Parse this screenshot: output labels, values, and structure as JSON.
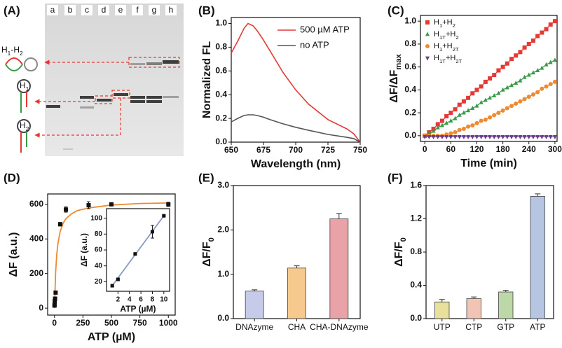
{
  "gel": {
    "label": "(A)",
    "lanes": [
      "a",
      "b",
      "c",
      "d",
      "e",
      "f",
      "g",
      "h"
    ],
    "species": [
      "H1-H2",
      "H1",
      "H2"
    ]
  },
  "chart_data": [
    {
      "type": "line",
      "label": "(B)",
      "xlabel": "Wavelength (nm)",
      "ylabel": "Normalized FL",
      "legend": "upper right",
      "x": [
        650,
        655,
        660,
        663,
        667,
        670,
        675,
        680,
        690,
        700,
        710,
        725,
        740,
        745,
        750
      ],
      "series": [
        {
          "name": "500 µM ATP",
          "color": "#e53935",
          "values": [
            0.75,
            0.85,
            0.96,
            1.0,
            0.98,
            0.94,
            0.86,
            0.77,
            0.59,
            0.44,
            0.32,
            0.19,
            0.11,
            0.07,
            0.0
          ]
        },
        {
          "name": "no ATP",
          "color": "#555555",
          "values": [
            0.17,
            0.2,
            0.225,
            0.23,
            0.23,
            0.225,
            0.21,
            0.19,
            0.155,
            0.125,
            0.1,
            0.065,
            0.04,
            0.03,
            0.0
          ]
        }
      ],
      "xlim": [
        650,
        750
      ],
      "xticks": [
        650,
        675,
        700,
        725,
        750
      ],
      "ylim": [
        0,
        1.05
      ],
      "yticks": [
        {
          "value": 0,
          "label": "0.0"
        },
        0.2,
        0.4,
        0.6,
        0.8,
        {
          "value": 1,
          "label": "1.0"
        }
      ]
    },
    {
      "type": "scatter",
      "label": "(C)",
      "xlabel": "Time (min)",
      "ylabel": "ΔF/ΔFmax",
      "legend": "upper left",
      "x": [
        0,
        10,
        20,
        30,
        40,
        50,
        60,
        70,
        80,
        90,
        100,
        110,
        120,
        130,
        140,
        150,
        160,
        170,
        180,
        190,
        200,
        210,
        220,
        230,
        240,
        250,
        260,
        270,
        280,
        290,
        300
      ],
      "series": [
        {
          "name": "H1+H2",
          "color": "#e53935",
          "marker": "s",
          "values": [
            0,
            0.03,
            0.06,
            0.1,
            0.13,
            0.17,
            0.2,
            0.23,
            0.27,
            0.3,
            0.33,
            0.37,
            0.4,
            0.43,
            0.47,
            0.5,
            0.53,
            0.57,
            0.6,
            0.63,
            0.67,
            0.7,
            0.73,
            0.77,
            0.8,
            0.83,
            0.87,
            0.9,
            0.93,
            0.97,
            1.0
          ]
        },
        {
          "name": "H1T+H2",
          "color": "#3a9a4a",
          "marker": "^",
          "values": [
            0,
            0.02,
            0.04,
            0.07,
            0.09,
            0.11,
            0.13,
            0.15,
            0.18,
            0.2,
            0.22,
            0.24,
            0.26,
            0.29,
            0.31,
            0.33,
            0.35,
            0.37,
            0.4,
            0.42,
            0.44,
            0.46,
            0.48,
            0.51,
            0.53,
            0.55,
            0.57,
            0.59,
            0.62,
            0.64,
            0.66
          ]
        },
        {
          "name": "H1+H2T",
          "color": "#f08a30",
          "marker": "o",
          "values": [
            0,
            0,
            0,
            0,
            0,
            0.01,
            0.02,
            0.03,
            0.05,
            0.06,
            0.08,
            0.09,
            0.11,
            0.13,
            0.14,
            0.16,
            0.18,
            0.2,
            0.22,
            0.24,
            0.26,
            0.28,
            0.3,
            0.32,
            0.34,
            0.36,
            0.38,
            0.41,
            0.43,
            0.45,
            0.47
          ]
        },
        {
          "name": "H1T+H2T",
          "color": "#6a3d8f",
          "marker": "v",
          "values": [
            -0.01,
            -0.01,
            -0.01,
            -0.01,
            -0.01,
            -0.01,
            -0.01,
            -0.01,
            -0.01,
            -0.01,
            -0.01,
            -0.01,
            -0.01,
            -0.01,
            -0.01,
            -0.01,
            -0.01,
            -0.01,
            -0.01,
            -0.01,
            -0.01,
            -0.01,
            -0.01,
            -0.01,
            -0.01,
            -0.01,
            -0.01,
            -0.01,
            -0.01,
            -0.01,
            -0.01
          ]
        }
      ],
      "xlim": [
        -10,
        305
      ],
      "xticks": [
        0,
        60,
        120,
        180,
        240,
        300
      ],
      "ylim": [
        -0.05,
        1.05
      ],
      "yticks": [
        {
          "value": 0,
          "label": "0.0"
        },
        0.2,
        0.4,
        0.6,
        0.8,
        {
          "value": 1,
          "label": "1.0"
        }
      ]
    },
    {
      "type": "scatter",
      "label": "(D)",
      "xlabel": "ATP (µM)",
      "ylabel": "ΔF (a.u.)",
      "x": [
        0,
        1,
        2,
        5,
        10,
        50,
        100,
        300,
        500,
        1000
      ],
      "series": [
        {
          "color": "#111111",
          "marker": "s",
          "values": [
            15,
            20,
            40,
            55,
            90,
            485,
            570,
            595,
            600,
            600
          ],
          "errors": [
            3,
            3,
            3,
            3,
            5,
            10,
            15,
            20,
            8,
            12
          ]
        }
      ],
      "fit": {
        "color": "#f08a30",
        "x": [
          0,
          10,
          20,
          30,
          50,
          75,
          100,
          150,
          200,
          300,
          500,
          750,
          1000
        ],
        "y": [
          0,
          207,
          310,
          372,
          443,
          490,
          517,
          545,
          564,
          579,
          596,
          605,
          608
        ]
      },
      "xlim": [
        -60,
        1060
      ],
      "xticks": [
        0,
        250,
        500,
        750,
        1000
      ],
      "ylim": [
        -40,
        660
      ],
      "yticks": [
        0,
        200,
        400,
        600
      ]
    },
    {
      "type": "scatter",
      "xlabel": "ATP (µM)",
      "ylabel": "ΔF (a.u.)",
      "x": [
        1,
        2,
        5,
        8,
        10
      ],
      "series": [
        {
          "color": "#111111",
          "marker": "s",
          "values": [
            15,
            23,
            55,
            83,
            103
          ],
          "errors": [
            1,
            1,
            1,
            8,
            1
          ]
        }
      ],
      "fit": {
        "color": "#8a9bc4",
        "x": [
          1,
          10
        ],
        "y": [
          15,
          103
        ]
      },
      "xlim": [
        0,
        11
      ],
      "xticks": [
        2,
        4,
        6,
        8,
        10
      ],
      "ylim": [
        8,
        112
      ],
      "yticks": [
        20,
        40,
        60,
        80,
        100
      ]
    },
    {
      "type": "bar",
      "label": "(E)",
      "ylabel": "ΔF/F0",
      "categories": [
        "DNAzyme",
        "CHA",
        "CHA-DNAzyme"
      ],
      "values": [
        0.62,
        1.14,
        2.25
      ],
      "errors": [
        0.03,
        0.05,
        0.12
      ],
      "colors": [
        "#c5cbe8",
        "#f6c98e",
        "#e9a2a8"
      ],
      "ylim": [
        0,
        3
      ],
      "yticks": [
        {
          "value": 0,
          "label": "0.0"
        },
        {
          "value": 1,
          "label": "1.0"
        },
        {
          "value": 2,
          "label": "2.0"
        },
        {
          "value": 3,
          "label": "3.0"
        }
      ]
    },
    {
      "type": "bar",
      "label": "(F)",
      "ylabel": "ΔF/F0",
      "categories": [
        "UTP",
        "CTP",
        "GTP",
        "ATP"
      ],
      "values": [
        0.2,
        0.24,
        0.32,
        1.47
      ],
      "errors": [
        0.03,
        0.02,
        0.02,
        0.03
      ],
      "colors": [
        "#e9e09c",
        "#f2c4b6",
        "#bcd8a6",
        "#b5c5e2"
      ],
      "ylim": [
        0,
        1.6
      ],
      "yticks": [
        {
          "value": 0,
          "label": "0.0"
        },
        0.4,
        0.8,
        1.2,
        1.6
      ]
    }
  ]
}
